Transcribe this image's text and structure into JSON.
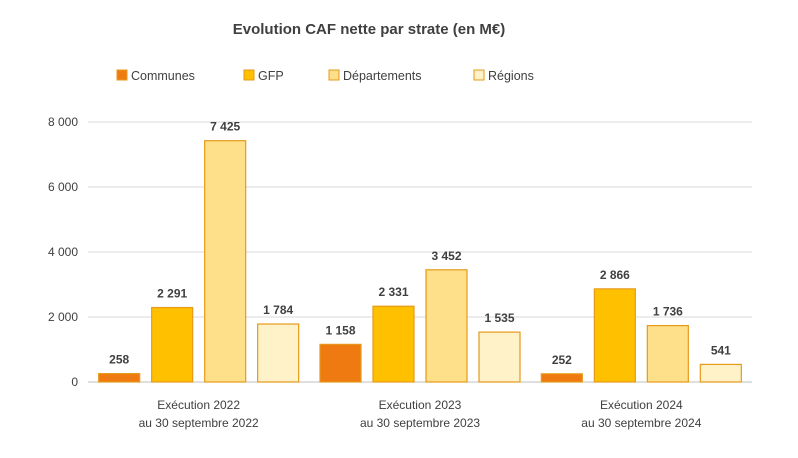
{
  "chart_data": {
    "type": "bar",
    "title": "Evolution CAF nette par strate (en M€)",
    "categories": [
      [
        "Exécution 2022",
        "au 30 septembre 2022"
      ],
      [
        "Exécution 2023",
        "au 30 septembre 2023"
      ],
      [
        "Exécution 2024",
        "au 30 septembre 2024"
      ]
    ],
    "series": [
      {
        "name": "Communes",
        "values": [
          258,
          1158,
          252
        ],
        "labels": [
          "258",
          "1 158",
          "252"
        ],
        "color": "#f07a12"
      },
      {
        "name": "GFP",
        "values": [
          2291,
          2331,
          2866
        ],
        "labels": [
          "2 291",
          "2 331",
          "2 866"
        ],
        "color": "#ffc000"
      },
      {
        "name": "Départements",
        "values": [
          7425,
          3452,
          1736
        ],
        "labels": [
          "7 425",
          "3 452",
          "1 736"
        ],
        "color": "#ffe08a"
      },
      {
        "name": "Régions",
        "values": [
          1784,
          1535,
          541
        ],
        "labels": [
          "1 784",
          "1 535",
          "541"
        ],
        "color": "#fff1c8"
      }
    ],
    "bar_stroke": "#e69a1a",
    "ylim": [
      0,
      8000
    ],
    "yticks": [
      0,
      2000,
      4000,
      6000,
      8000
    ],
    "ytick_labels": [
      "0",
      "2 000",
      "4 000",
      "6 000",
      "8 000"
    ],
    "grid": true,
    "legend_position": "top"
  }
}
